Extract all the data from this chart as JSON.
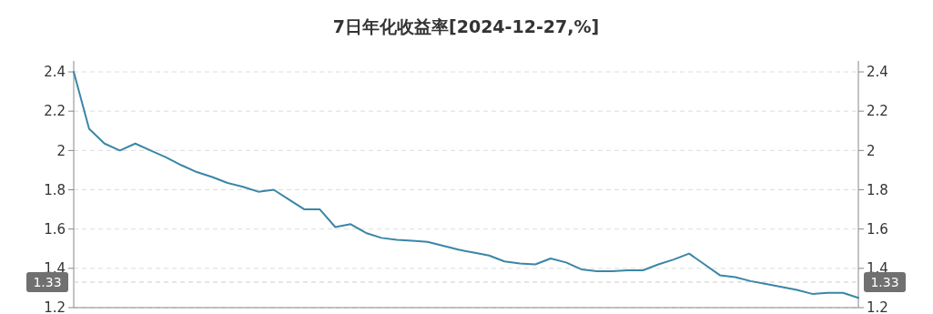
{
  "chart_data": {
    "type": "line",
    "title": "7日年化收益率[2024-12-27,%]",
    "categories": [
      null,
      null,
      null,
      null,
      null,
      null,
      null,
      null,
      null,
      null,
      null,
      null,
      null,
      null,
      null,
      null,
      null,
      null,
      null,
      null,
      null,
      null,
      null,
      null,
      null,
      null,
      null,
      null,
      null,
      null,
      null,
      null,
      null,
      null,
      null,
      null,
      null,
      null,
      null,
      null,
      null,
      null,
      null,
      null,
      null,
      null,
      null,
      null,
      null,
      null,
      null,
      null
    ],
    "series": [
      {
        "color": "#3a86a6",
        "values": [
          2.4,
          2.11,
          2.035,
          2.0,
          2.035,
          2.0,
          1.965,
          1.925,
          1.89,
          1.865,
          1.835,
          1.815,
          1.79,
          1.8,
          1.75,
          1.7,
          1.7,
          1.61,
          1.625,
          1.58,
          1.555,
          1.545,
          1.54,
          1.535,
          1.515,
          1.495,
          1.48,
          1.465,
          1.435,
          1.425,
          1.42,
          1.45,
          1.43,
          1.395,
          1.385,
          1.385,
          1.39,
          1.39,
          1.42,
          1.445,
          1.475,
          1.42,
          1.365,
          1.355,
          1.335,
          1.32,
          1.305,
          1.29,
          1.27,
          1.275,
          1.275,
          1.25
        ]
      }
    ],
    "ylim": [
      1.2,
      2.4
    ],
    "yticks": [
      1.2,
      1.4,
      1.6,
      1.8,
      2,
      2.2,
      2.4
    ],
    "y2lim": [
      1.2,
      2.4
    ],
    "y2ticks": [
      1.2,
      1.4,
      1.6,
      1.8,
      2,
      2.2,
      2.4
    ],
    "grid": "y",
    "ref_lines": [
      {
        "axis": "y",
        "value": 1.33,
        "label": "1.33",
        "color": "#cccccc",
        "line_style": "dashed"
      }
    ]
  }
}
